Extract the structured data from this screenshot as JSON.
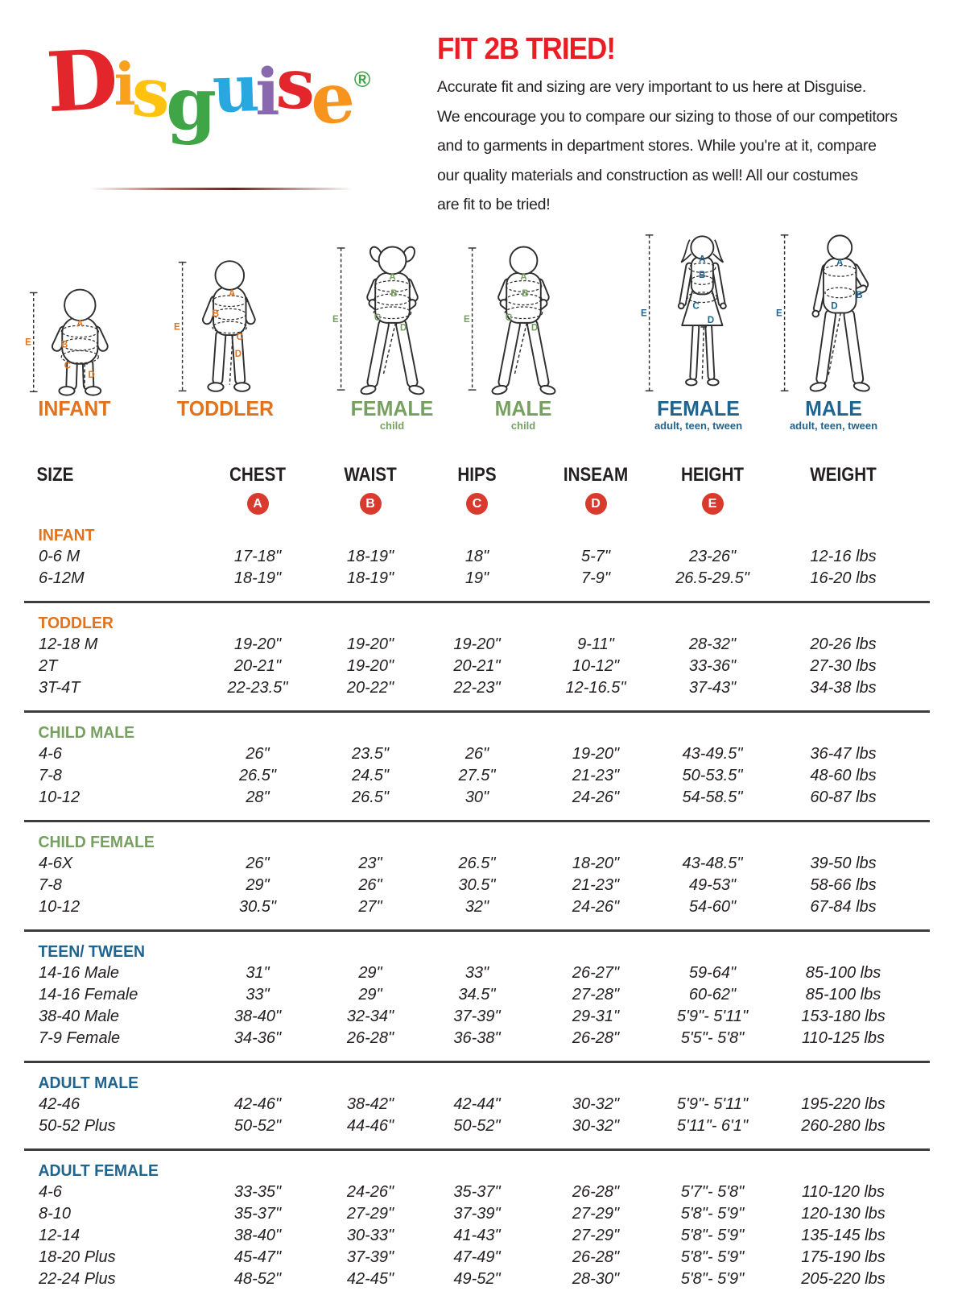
{
  "logo": {
    "letters": [
      {
        "char": "D",
        "color": "#e3262c"
      },
      {
        "char": "i",
        "color": "#f7a11d"
      },
      {
        "char": "s",
        "color": "#ffc20e"
      },
      {
        "char": "g",
        "color": "#3fa546"
      },
      {
        "char": "u",
        "color": "#29a8e0"
      },
      {
        "char": "i",
        "color": "#8a68ad"
      },
      {
        "char": "s",
        "color": "#e3262c"
      },
      {
        "char": "e",
        "color": "#f7941d"
      }
    ],
    "registered_mark": "®",
    "registered_color": "#3fa546"
  },
  "header": {
    "title": "FIT 2B TRIED!",
    "title_color": "#ec1c24",
    "paragraph": [
      "Accurate fit and sizing are very important to us here at Disguise.",
      "We encourage you to compare our sizing to those of our competitors",
      "and to garments in department stores. While you're at it, compare",
      "our quality materials and construction as well! All our costumes",
      "are fit to be tried!"
    ]
  },
  "figures": [
    {
      "id": "infant",
      "label": "INFANT",
      "sublabel": "",
      "color": "#e0731f",
      "letters": [
        "A",
        "B",
        "C",
        "D",
        "E"
      ]
    },
    {
      "id": "toddler",
      "label": "TODDLER",
      "sublabel": "",
      "color": "#e0731f",
      "letters": [
        "A",
        "B",
        "C",
        "D",
        "E"
      ]
    },
    {
      "id": "child-female",
      "label": "FEMALE",
      "sublabel": "child",
      "color": "#76a05f",
      "letters": [
        "A",
        "B",
        "C",
        "D",
        "E"
      ]
    },
    {
      "id": "child-male",
      "label": "MALE",
      "sublabel": "child",
      "color": "#76a05f",
      "letters": [
        "A",
        "B",
        "C",
        "D",
        "E"
      ]
    },
    {
      "id": "adult-female",
      "label": "FEMALE",
      "sublabel": "adult, teen, tween",
      "color": "#1f648f",
      "letters": [
        "A",
        "B",
        "C",
        "D",
        "E"
      ]
    },
    {
      "id": "adult-male",
      "label": "MALE",
      "sublabel": "adult, teen, tween",
      "color": "#1f648f",
      "letters": [
        "A",
        "B",
        "D",
        "E"
      ]
    }
  ],
  "size_chart": {
    "columns": [
      "SIZE",
      "CHEST",
      "WAIST",
      "HIPS",
      "INSEAM",
      "HEIGHT",
      "WEIGHT"
    ],
    "badge_letters": [
      "A",
      "B",
      "C",
      "D",
      "E"
    ],
    "badge_color": "#d93a2e",
    "sections": [
      {
        "name": "INFANT",
        "color": "#e0731f",
        "rows": [
          [
            "0-6 M",
            "17-18\"",
            "18-19\"",
            "18\"",
            "5-7\"",
            "23-26\"",
            "12-16 lbs"
          ],
          [
            "6-12M",
            "18-19\"",
            "18-19\"",
            "19\"",
            "7-9\"",
            "26.5-29.5\"",
            "16-20 lbs"
          ]
        ]
      },
      {
        "name": "TODDLER",
        "color": "#e0731f",
        "rows": [
          [
            "12-18 M",
            "19-20\"",
            "19-20\"",
            "19-20\"",
            "9-11\"",
            "28-32\"",
            "20-26 lbs"
          ],
          [
            "2T",
            "20-21\"",
            "19-20\"",
            "20-21\"",
            "10-12\"",
            "33-36\"",
            "27-30 lbs"
          ],
          [
            "3T-4T",
            "22-23.5\"",
            "20-22\"",
            "22-23\"",
            "12-16.5\"",
            "37-43\"",
            "34-38 lbs"
          ]
        ]
      },
      {
        "name": "CHILD MALE",
        "color": "#76a05f",
        "rows": [
          [
            "4-6",
            "26\"",
            "23.5\"",
            "26\"",
            "19-20\"",
            "43-49.5\"",
            "36-47 lbs"
          ],
          [
            "7-8",
            "26.5\"",
            "24.5\"",
            "27.5\"",
            "21-23\"",
            "50-53.5\"",
            "48-60 lbs"
          ],
          [
            "10-12",
            "28\"",
            "26.5\"",
            "30\"",
            "24-26\"",
            "54-58.5\"",
            "60-87 lbs"
          ]
        ]
      },
      {
        "name": "CHILD FEMALE",
        "color": "#76a05f",
        "rows": [
          [
            "4-6X",
            "26\"",
            "23\"",
            "26.5\"",
            "18-20\"",
            "43-48.5\"",
            "39-50 lbs"
          ],
          [
            "7-8",
            "29\"",
            "26\"",
            "30.5\"",
            "21-23\"",
            "49-53\"",
            "58-66 lbs"
          ],
          [
            "10-12",
            "30.5\"",
            "27\"",
            "32\"",
            "24-26\"",
            "54-60\"",
            "67-84 lbs"
          ]
        ]
      },
      {
        "name": "TEEN/ TWEEN",
        "color": "#1f648f",
        "rows": [
          [
            "14-16 Male",
            "31\"",
            "29\"",
            "33\"",
            "26-27\"",
            "59-64\"",
            "85-100 lbs"
          ],
          [
            "14-16 Female",
            "33\"",
            "29\"",
            "34.5\"",
            "27-28\"",
            "60-62\"",
            "85-100 lbs"
          ],
          [
            "38-40 Male",
            "38-40\"",
            "32-34\"",
            "37-39\"",
            "29-31\"",
            "5'9\"- 5'11\"",
            "153-180 lbs"
          ],
          [
            "7-9 Female",
            "34-36\"",
            "26-28\"",
            "36-38\"",
            "26-28\"",
            "5'5\"- 5'8\"",
            "110-125 lbs"
          ]
        ]
      },
      {
        "name": "ADULT MALE",
        "color": "#1f648f",
        "rows": [
          [
            "42-46",
            "42-46\"",
            "38-42\"",
            "42-44\"",
            "30-32\"",
            "5'9\"- 5'11\"",
            "195-220 lbs"
          ],
          [
            "50-52 Plus",
            "50-52\"",
            "44-46\"",
            "50-52\"",
            "30-32\"",
            "5'11\"- 6'1\"",
            "260-280 lbs"
          ]
        ]
      },
      {
        "name": "ADULT FEMALE",
        "color": "#1f648f",
        "rows": [
          [
            "4-6",
            "33-35\"",
            "24-26\"",
            "35-37\"",
            "26-28\"",
            "5'7\"- 5'8\"",
            "110-120 lbs"
          ],
          [
            "8-10",
            "35-37\"",
            "27-29\"",
            "37-39\"",
            "27-29\"",
            "5'8\"- 5'9\"",
            "120-130 lbs"
          ],
          [
            "12-14",
            "38-40\"",
            "30-33\"",
            "41-43\"",
            "27-29\"",
            "5'8\"- 5'9\"",
            "135-145 lbs"
          ],
          [
            "18-20 Plus",
            "45-47\"",
            "37-39\"",
            "47-49\"",
            "26-28\"",
            "5'8\"- 5'9\"",
            "175-190 lbs"
          ],
          [
            "22-24 Plus",
            "48-52\"",
            "42-45\"",
            "49-52\"",
            "28-30\"",
            "5'8\"- 5'9\"",
            "205-220 lbs"
          ]
        ]
      }
    ]
  }
}
